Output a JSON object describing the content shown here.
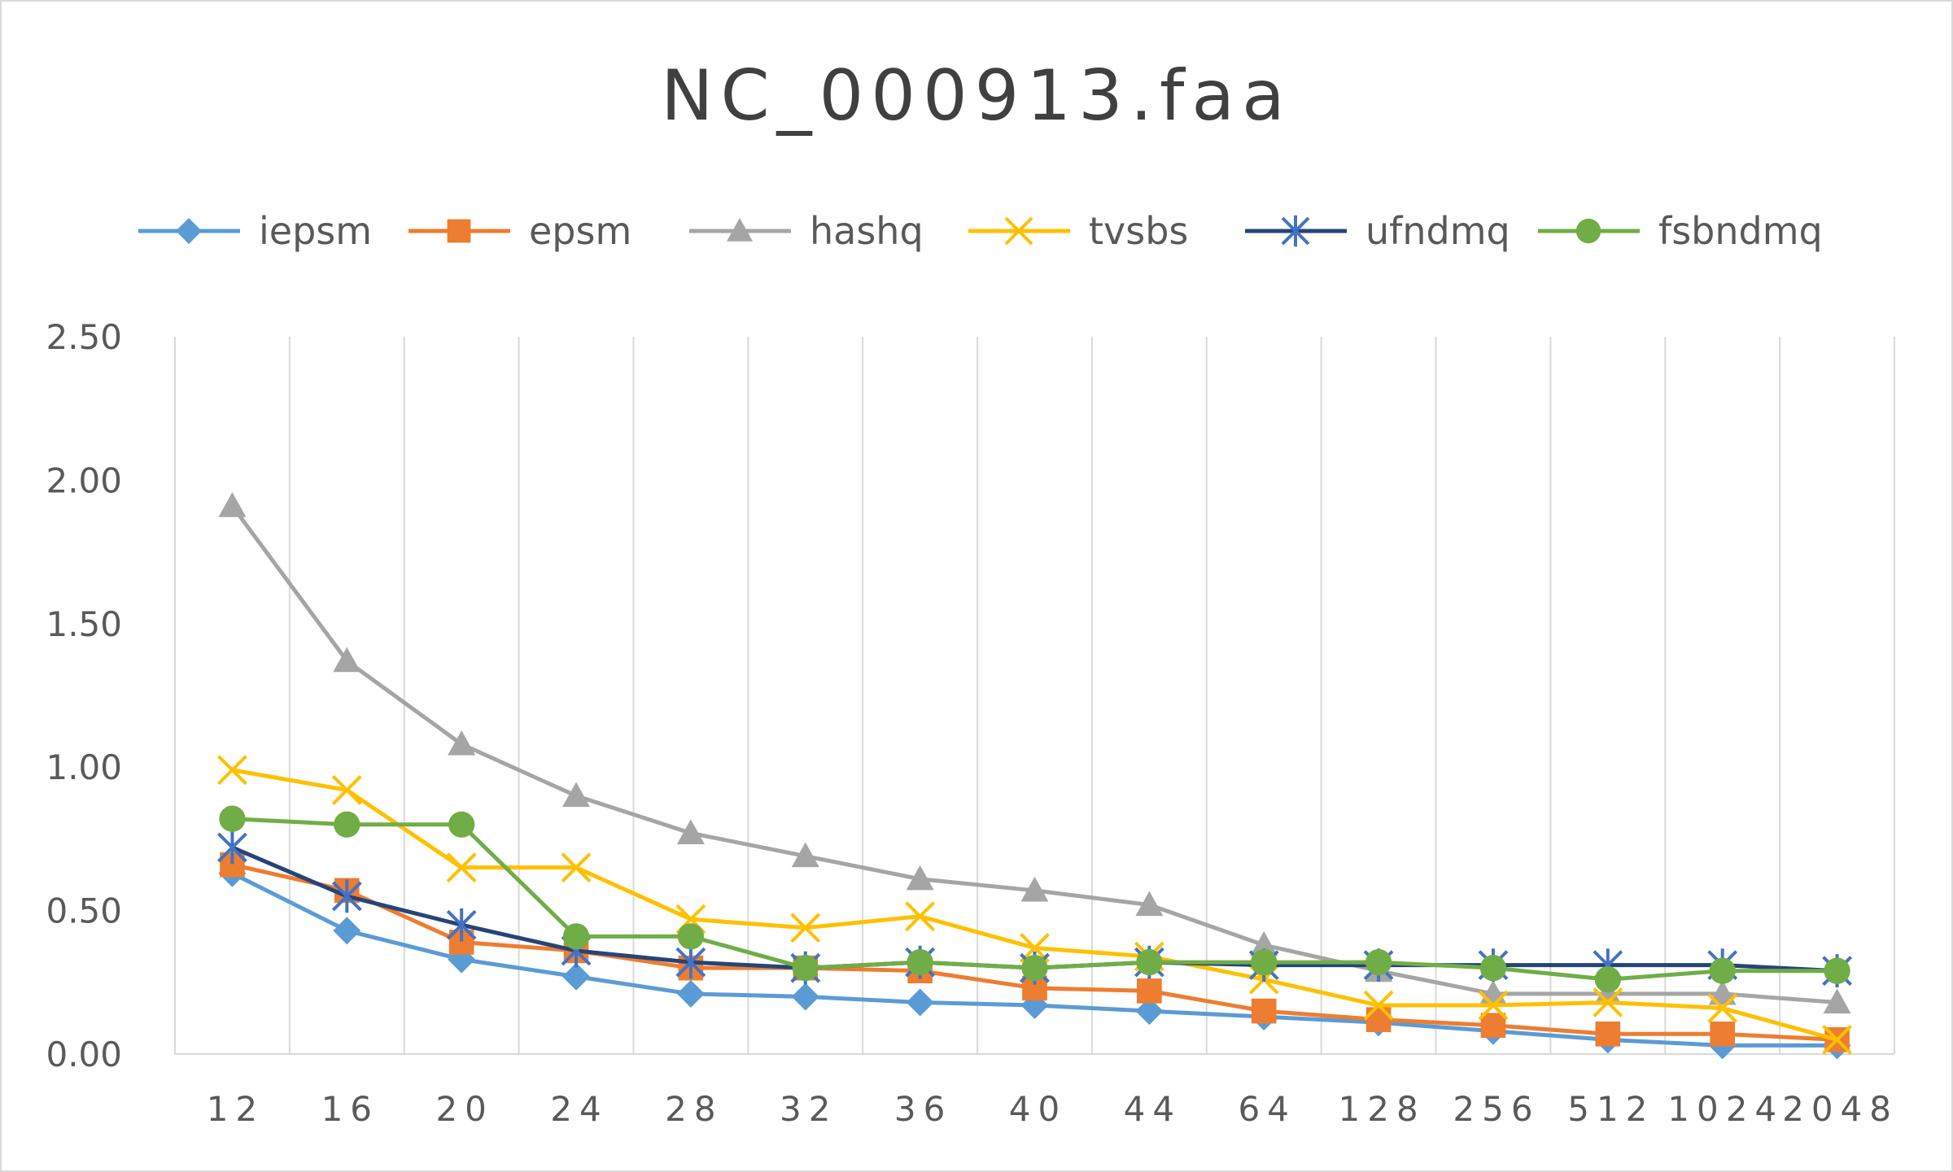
{
  "chart_data": {
    "type": "line",
    "title": "NC_000913.faa",
    "xlabel": "",
    "ylabel": "",
    "categories": [
      "12",
      "16",
      "20",
      "24",
      "28",
      "32",
      "36",
      "40",
      "44",
      "64",
      "128",
      "256",
      "512",
      "1024",
      "2048"
    ],
    "ylim": [
      0,
      2.5
    ],
    "yticks": [
      "0.00",
      "0.50",
      "1.00",
      "1.50",
      "2.00",
      "2.50"
    ],
    "grid": "vertical",
    "legend": "top",
    "series": [
      {
        "name": "iepsm",
        "color": "#5b9bd5",
        "marker": "diamond",
        "values": [
          0.63,
          0.43,
          0.33,
          0.27,
          0.21,
          0.2,
          0.18,
          0.17,
          0.15,
          0.13,
          0.11,
          0.08,
          0.05,
          0.03,
          0.03
        ]
      },
      {
        "name": "epsm",
        "color": "#ed7d31",
        "marker": "square",
        "values": [
          0.66,
          0.57,
          0.39,
          0.36,
          0.3,
          0.3,
          0.29,
          0.23,
          0.22,
          0.15,
          0.12,
          0.1,
          0.07,
          0.07,
          0.05
        ]
      },
      {
        "name": "hashq",
        "color": "#a5a5a5",
        "marker": "triangle",
        "values": [
          1.91,
          1.37,
          1.08,
          0.9,
          0.77,
          0.69,
          0.61,
          0.57,
          0.52,
          0.38,
          0.29,
          0.21,
          0.21,
          0.21,
          0.18
        ]
      },
      {
        "name": "tvsbs",
        "color": "#ffc000",
        "marker": "x",
        "values": [
          0.99,
          0.92,
          0.65,
          0.65,
          0.47,
          0.44,
          0.48,
          0.37,
          0.34,
          0.26,
          0.17,
          0.17,
          0.18,
          0.16,
          0.05
        ]
      },
      {
        "name": "ufndmq",
        "color": "#264478",
        "marker": "star",
        "values": [
          0.72,
          0.55,
          0.45,
          0.36,
          0.32,
          0.3,
          0.32,
          0.3,
          0.32,
          0.31,
          0.31,
          0.31,
          0.31,
          0.31,
          0.29
        ]
      },
      {
        "name": "fsbndmq",
        "color": "#70ad47",
        "marker": "circle",
        "values": [
          0.82,
          0.8,
          0.8,
          0.41,
          0.41,
          0.3,
          0.32,
          0.3,
          0.32,
          0.32,
          0.32,
          0.3,
          0.26,
          0.29,
          0.29
        ]
      }
    ]
  }
}
